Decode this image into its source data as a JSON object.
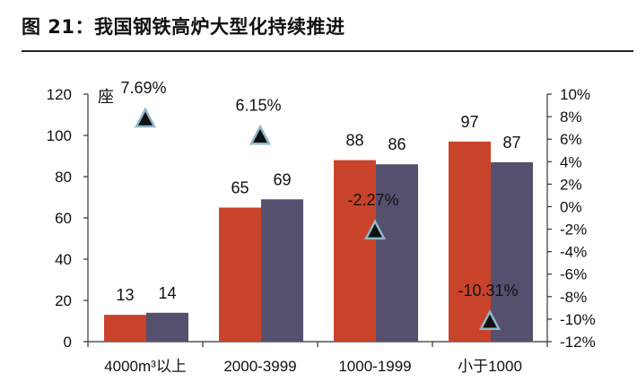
{
  "figure": {
    "title": "图 21：我国钢铁高炉大型化持续推进"
  },
  "chart_data": {
    "type": "bar",
    "categories": [
      "4000m³以上",
      "2000-3999",
      "1000-1999",
      "小于1000"
    ],
    "unit_label": "座",
    "series": [
      {
        "values": [
          13,
          65,
          88,
          97
        ],
        "color": "#c9432a",
        "axis": "left"
      },
      {
        "values": [
          14,
          69,
          86,
          87
        ],
        "color": "#56506f",
        "axis": "left"
      },
      {
        "type": "scatter",
        "marker": "triangle",
        "values": [
          7.69,
          6.15,
          -2.27,
          -10.31
        ],
        "labels": [
          "7.69%",
          "6.15%",
          "-2.27%",
          "-10.31%"
        ],
        "color": "#111111",
        "edge": "#8fb8c8",
        "axis": "right"
      }
    ],
    "y_left": {
      "ylim": [
        0,
        120
      ],
      "ticks": [
        "0",
        "20",
        "40",
        "60",
        "80",
        "100",
        "120"
      ]
    },
    "y_right": {
      "ylim": [
        -12,
        10
      ],
      "ticks": [
        "-12%",
        "-10%",
        "-8%",
        "-6%",
        "-4%",
        "-2%",
        "0%",
        "2%",
        "4%",
        "6%",
        "8%",
        "10%"
      ]
    },
    "grid": false,
    "legend": "none"
  }
}
